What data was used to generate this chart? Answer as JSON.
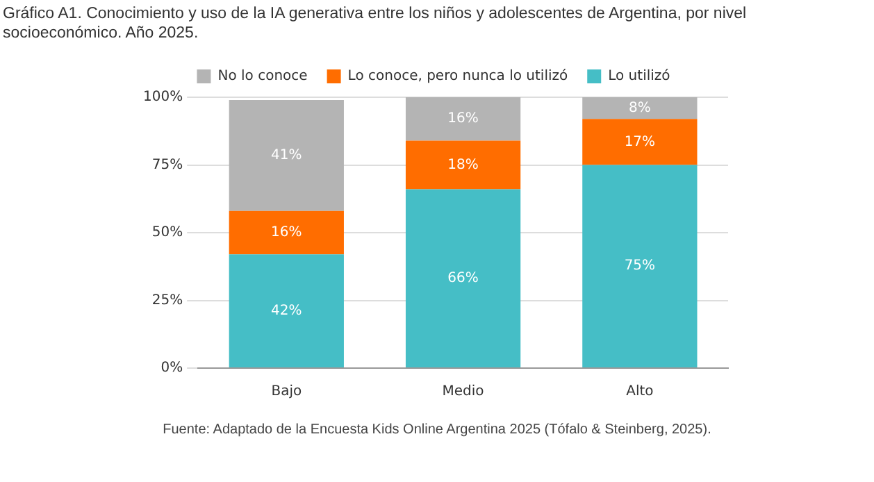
{
  "chart_data": {
    "type": "bar",
    "title": "Gráfico A1. Conocimiento y uso de la IA generativa entre los niños y adolescentes de Argentina, por nivel socioeconómico. Año 2025.",
    "categories": [
      "Bajo",
      "Medio",
      "Alto"
    ],
    "series": [
      {
        "name": "Lo utilizó",
        "color": "#45bec6",
        "values": [
          42,
          66,
          75
        ],
        "value_labels": [
          "42%",
          "66%",
          "75%"
        ]
      },
      {
        "name": "Lo conoce, pero nunca lo utilizó",
        "color": "#ff6d00",
        "values": [
          16,
          18,
          17
        ],
        "value_labels": [
          "16%",
          "18%",
          "17%"
        ]
      },
      {
        "name": "No lo conoce",
        "color": "#b4b4b4",
        "values": [
          41,
          16,
          8
        ],
        "value_labels": [
          "41%",
          "16%",
          "8%"
        ]
      }
    ],
    "stacked": true,
    "ylim": [
      0,
      100
    ],
    "yticks": [
      {
        "value": 0,
        "label": "0%"
      },
      {
        "value": 25,
        "label": "25%"
      },
      {
        "value": 50,
        "label": "50%"
      },
      {
        "value": 75,
        "label": "75%"
      },
      {
        "value": 100,
        "label": "100%"
      }
    ],
    "grid": "y",
    "legend": "top",
    "annotations": [
      "Fuente: Adaptado de la Encuesta Kids Online Argentina 2025 (Tófalo & Steinberg, 2025)."
    ]
  }
}
